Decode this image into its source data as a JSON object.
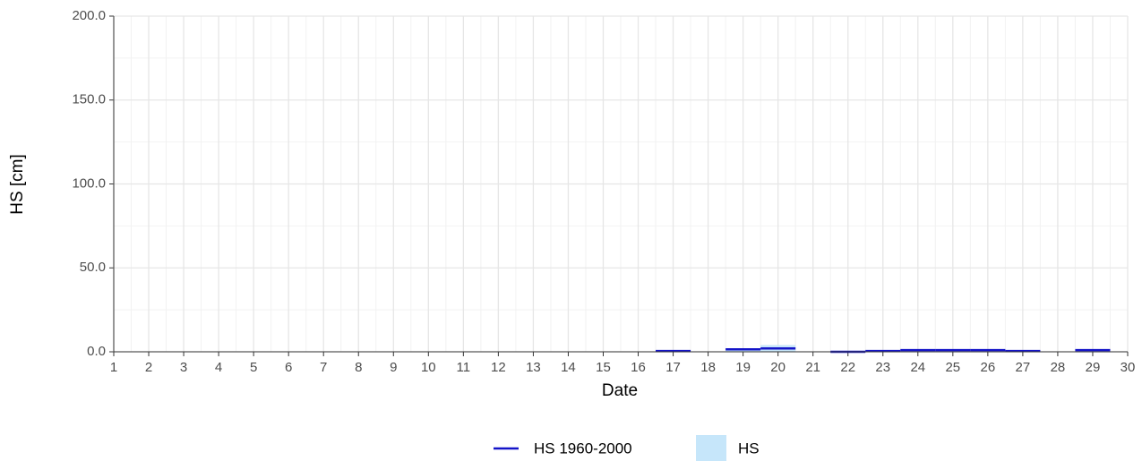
{
  "chart_data": {
    "type": "step",
    "x_label": "Date",
    "y_label": "HS [cm]",
    "x": [
      1,
      2,
      3,
      4,
      5,
      6,
      7,
      8,
      9,
      10,
      11,
      12,
      13,
      14,
      15,
      16,
      17,
      18,
      19,
      20,
      21,
      22,
      23,
      24,
      25,
      26,
      27,
      28,
      29,
      30
    ],
    "series": [
      {
        "name": "HS",
        "kind": "bar",
        "color": "#c6e6fa",
        "values": [
          null,
          null,
          null,
          null,
          null,
          null,
          null,
          null,
          null,
          null,
          null,
          null,
          null,
          null,
          null,
          null,
          1,
          null,
          1,
          4,
          null,
          null,
          null,
          null,
          null,
          null,
          null,
          null,
          null,
          null
        ]
      },
      {
        "name": "HS 1960-2000",
        "kind": "line",
        "color": "#1414c8",
        "values": [
          null,
          null,
          null,
          null,
          null,
          null,
          null,
          null,
          null,
          null,
          null,
          null,
          null,
          null,
          null,
          null,
          0.5,
          null,
          1.5,
          2,
          null,
          0,
          0.5,
          1,
          1,
          1,
          0.5,
          null,
          1,
          null
        ]
      }
    ],
    "xlim": [
      1,
      30
    ],
    "xticks": [
      1,
      2,
      3,
      4,
      5,
      6,
      7,
      8,
      9,
      10,
      11,
      12,
      13,
      14,
      15,
      16,
      17,
      18,
      19,
      20,
      21,
      22,
      23,
      24,
      25,
      26,
      27,
      28,
      29,
      30
    ],
    "ylim": [
      0,
      200
    ],
    "yticks": [
      {
        "value": 0,
        "label": "0.0"
      },
      {
        "value": 50,
        "label": "50.0"
      },
      {
        "value": 100,
        "label": "100.0"
      },
      {
        "value": 150,
        "label": "150.0"
      },
      {
        "value": 200,
        "label": "200.0"
      }
    ],
    "grid": true,
    "legend": "bottom"
  }
}
